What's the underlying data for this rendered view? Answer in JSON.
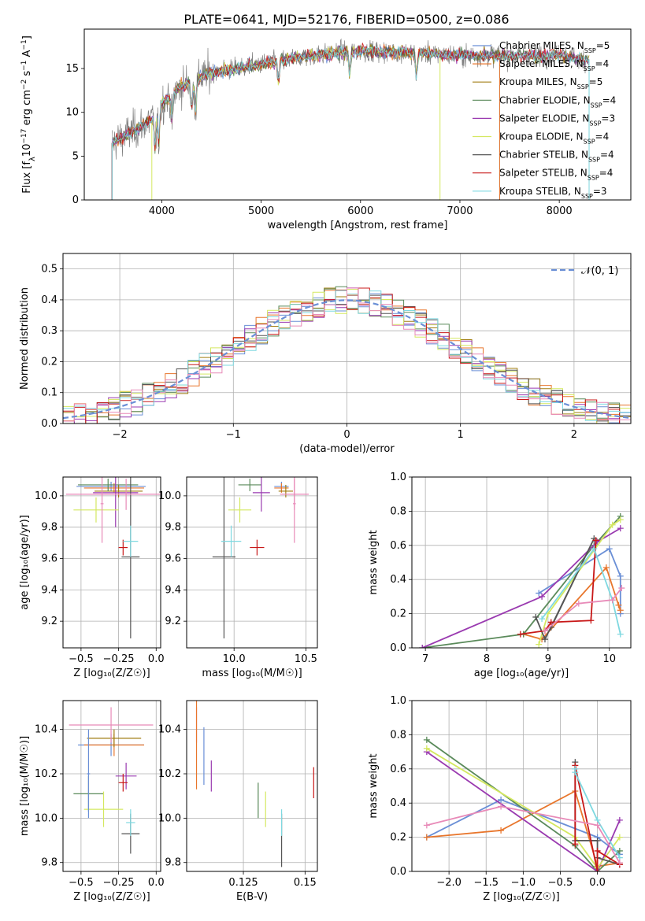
{
  "figure_title": "PLATE=0641, MJD=52176, FIBERID=0500, z=0.086",
  "colors": {
    "Chabrier MILES": "#6a8fd6",
    "Salpeter MILES": "#e8762c",
    "Kroupa MILES": "#a07d12",
    "Chabrier ELODIE": "#5a8a5a",
    "Salpeter ELODIE": "#9a3ab0",
    "Kroupa ELODIE": "#d4e860",
    "Chabrier STELIB": "#555555",
    "Salpeter STELIB": "#c81818",
    "Kroupa STELIB": "#7ed8e0",
    "pink": "#e88ab8",
    "gaussian": "#6a8fd6",
    "grid": "#b0b0b0"
  },
  "chart_data": [
    {
      "id": "spectrum",
      "type": "line",
      "xlabel": "wavelength [Angstrom, rest frame]",
      "ylabel": "Flux [f_λ10^-17 erg cm^-2 s^-1 A^-1]",
      "xlim": [
        3220,
        8720
      ],
      "ylim": [
        0,
        19.5
      ],
      "xticks": [
        4000,
        5000,
        6000,
        7000,
        8000
      ],
      "yticks": [
        0,
        5,
        10,
        15
      ],
      "legend_position": "right",
      "legend": [
        {
          "label": "Chabrier MILES, N",
          "sub": "SSP",
          "suffix": "=5",
          "color_key": "Chabrier MILES"
        },
        {
          "label": "Salpeter MILES, N",
          "sub": "SSP",
          "suffix": "=4",
          "color_key": "Salpeter MILES"
        },
        {
          "label": "Kroupa MILES, N",
          "sub": "SSP",
          "suffix": "=5",
          "color_key": "Kroupa MILES"
        },
        {
          "label": "Chabrier ELODIE, N",
          "sub": "SSP",
          "suffix": "=4",
          "color_key": "Chabrier ELODIE"
        },
        {
          "label": "Salpeter ELODIE, N",
          "sub": "SSP",
          "suffix": "=3",
          "color_key": "Salpeter ELODIE"
        },
        {
          "label": "Kroupa ELODIE, N",
          "sub": "SSP",
          "suffix": "=4",
          "color_key": "Kroupa ELODIE"
        },
        {
          "label": "Chabrier STELIB, N",
          "sub": "SSP",
          "suffix": "=4",
          "color_key": "Chabrier STELIB"
        },
        {
          "label": "Salpeter STELIB, N",
          "sub": "SSP",
          "suffix": "=4",
          "color_key": "Salpeter STELIB"
        },
        {
          "label": "Kroupa STELIB, N",
          "sub": "SSP",
          "suffix": "=3",
          "color_key": "Kroupa STELIB"
        }
      ],
      "continuum": [
        [
          3500,
          6.5
        ],
        [
          3700,
          7.8
        ],
        [
          3900,
          9.2
        ],
        [
          4000,
          11
        ],
        [
          4200,
          13
        ],
        [
          4500,
          14.5
        ],
        [
          5000,
          15.5
        ],
        [
          5500,
          16.5
        ],
        [
          6000,
          17
        ],
        [
          6500,
          16.8
        ],
        [
          7000,
          16.5
        ],
        [
          7500,
          16.5
        ],
        [
          8000,
          16.5
        ],
        [
          8300,
          16
        ]
      ],
      "series_ranges": [
        [
          3500,
          7400
        ],
        [
          3500,
          7400
        ],
        [
          3500,
          8300
        ],
        [
          3500,
          8300
        ],
        [
          3500,
          8300
        ],
        [
          3900,
          6800
        ],
        [
          3500,
          8300
        ],
        [
          3500,
          8300
        ],
        [
          3500,
          8300
        ]
      ],
      "dips": [
        [
          3934,
          -4
        ],
        [
          3969,
          -4
        ],
        [
          4102,
          -3
        ],
        [
          4300,
          -3
        ],
        [
          4340,
          -3.5
        ],
        [
          5175,
          -2.5
        ],
        [
          5890,
          -2.5
        ],
        [
          6563,
          -2.5
        ]
      ]
    },
    {
      "id": "residual-hist",
      "type": "bar",
      "xlabel": "(data-model)/error",
      "ylabel": "Normed distribution",
      "xlim": [
        -2.5,
        2.5
      ],
      "ylim": [
        0,
        0.55
      ],
      "xticks": [
        -2,
        -1,
        0,
        1,
        2
      ],
      "yticks": [
        0.0,
        0.1,
        0.2,
        0.3,
        0.4,
        0.5
      ],
      "bins": 50,
      "legend_label": "𝒩(0, 1)",
      "legend_position": "top-right",
      "gaussian": {
        "mean": 0,
        "sigma": 1
      }
    },
    {
      "id": "age-vs-Z",
      "type": "scatter",
      "xlabel": "Z [log₁₀(Z/Z☉)]",
      "ylabel": "age  [log₁₀(age/yr)]",
      "xlim": [
        -0.62,
        0.03
      ],
      "ylim": [
        9.03,
        10.12
      ],
      "xticks": [
        -0.5,
        -0.25,
        0.0
      ],
      "yticks": [
        9.2,
        9.4,
        9.6,
        9.8,
        10.0
      ],
      "points": [
        {
          "c": "Chabrier MILES",
          "x": -0.3,
          "xerr": 0.23,
          "y": 10.06,
          "yerr": 0.03
        },
        {
          "c": "Salpeter MILES",
          "x": -0.28,
          "xerr": 0.2,
          "y": 10.05,
          "yerr": 0.03
        },
        {
          "c": "Kroupa MILES",
          "x": -0.25,
          "xerr": 0.16,
          "y": 10.03,
          "yerr": 0.04
        },
        {
          "c": "Chabrier ELODIE",
          "x": -0.32,
          "xerr": 0.2,
          "y": 10.07,
          "yerr": 0.04
        },
        {
          "c": "Salpeter ELODIE",
          "x": -0.27,
          "xerr": 0.15,
          "y": 10.02,
          "yerr": 0.22
        },
        {
          "c": "Kroupa ELODIE",
          "x": -0.4,
          "xerr": 0.15,
          "y": 9.91,
          "yerr": 0.08
        },
        {
          "c": "Chabrier STELIB",
          "x": -0.17,
          "xerr": 0.06,
          "y": 9.61,
          "yerr": 0.52
        },
        {
          "c": "Salpeter STELIB",
          "x": -0.22,
          "xerr": 0.03,
          "y": 9.67,
          "yerr": 0.05
        },
        {
          "c": "Kroupa STELIB",
          "x": -0.17,
          "xerr": 0.05,
          "y": 9.71,
          "yerr": 0.1
        },
        {
          "c": "pink",
          "x": -0.2,
          "xerr": 0.4,
          "y": 10.01,
          "yerr": 0.1
        },
        {
          "c": "pink",
          "x": -0.36,
          "xerr": 0.01,
          "y": 9.95,
          "yerr": 0.25
        }
      ]
    },
    {
      "id": "age-vs-mass",
      "type": "scatter",
      "xlabel": "mass [log₁₀(M/M☉)]",
      "ylabel": "",
      "xlim": [
        9.67,
        10.58
      ],
      "ylim": [
        9.03,
        10.12
      ],
      "xticks": [
        10.0,
        10.5
      ],
      "yticks": [
        9.2,
        9.4,
        9.6,
        9.8,
        10.0
      ],
      "points": [
        {
          "c": "Chabrier MILES",
          "x": 10.33,
          "xerr": 0.05,
          "y": 10.06,
          "yerr": 0.03
        },
        {
          "c": "Salpeter MILES",
          "x": 10.33,
          "xerr": 0.05,
          "y": 10.05,
          "yerr": 0.03
        },
        {
          "c": "Kroupa MILES",
          "x": 10.36,
          "xerr": 0.05,
          "y": 10.03,
          "yerr": 0.04
        },
        {
          "c": "Chabrier ELODIE",
          "x": 10.11,
          "xerr": 0.08,
          "y": 10.07,
          "yerr": 0.04
        },
        {
          "c": "Salpeter ELODIE",
          "x": 10.19,
          "xerr": 0.06,
          "y": 10.02,
          "yerr": 0.12
        },
        {
          "c": "Kroupa ELODIE",
          "x": 10.04,
          "xerr": 0.08,
          "y": 9.91,
          "yerr": 0.08
        },
        {
          "c": "Chabrier STELIB",
          "x": 9.93,
          "xerr": 0.08,
          "y": 9.61,
          "yerr": 0.52
        },
        {
          "c": "Salpeter STELIB",
          "x": 10.16,
          "xerr": 0.05,
          "y": 9.67,
          "yerr": 0.05
        },
        {
          "c": "Kroupa STELIB",
          "x": 9.98,
          "xerr": 0.07,
          "y": 9.71,
          "yerr": 0.1
        },
        {
          "c": "pink",
          "x": 10.42,
          "xerr": 0.1,
          "y": 10.01,
          "yerr": 0.1
        },
        {
          "c": "pink",
          "x": 10.42,
          "xerr": 0.01,
          "y": 9.95,
          "yerr": 0.25
        }
      ]
    },
    {
      "id": "weight-vs-age",
      "type": "line",
      "xlabel": "age  [log₁₀(age/yr)]",
      "ylabel": "mass weight",
      "xlim": [
        6.78,
        10.35
      ],
      "ylim": [
        0,
        1
      ],
      "xticks": [
        7,
        8,
        9,
        10
      ],
      "yticks": [
        0.0,
        0.2,
        0.4,
        0.6,
        0.8,
        1.0
      ],
      "series": [
        {
          "c": "Chabrier MILES",
          "x": [
            8.85,
            10.0,
            10.18,
            10.18
          ],
          "y": [
            0.32,
            0.58,
            0.42,
            0.2
          ]
        },
        {
          "c": "Salpeter MILES",
          "x": [
            8.6,
            8.9,
            9.95,
            10.15,
            10.18
          ],
          "y": [
            0.08,
            0.05,
            0.47,
            0.25,
            0.22
          ]
        },
        {
          "c": "Chabrier ELODIE",
          "x": [
            6.95,
            8.6,
            9.75,
            10.18
          ],
          "y": [
            0.0,
            0.08,
            0.6,
            0.77
          ]
        },
        {
          "c": "Salpeter ELODIE",
          "x": [
            6.95,
            8.9,
            9.8,
            10.18
          ],
          "y": [
            0.0,
            0.3,
            0.62,
            0.7
          ]
        },
        {
          "c": "Kroupa ELODIE",
          "x": [
            8.85,
            9.0,
            10.05,
            10.18
          ],
          "y": [
            0.02,
            0.2,
            0.72,
            0.75
          ]
        },
        {
          "c": "Chabrier STELIB",
          "x": [
            8.8,
            8.95,
            9.75,
            9.05
          ],
          "y": [
            0.18,
            0.05,
            0.64,
            0.12
          ]
        },
        {
          "c": "Salpeter STELIB",
          "x": [
            8.55,
            8.95,
            9.05,
            9.7,
            9.78
          ],
          "y": [
            0.08,
            0.1,
            0.15,
            0.16,
            0.63
          ]
        },
        {
          "c": "Kroupa STELIB",
          "x": [
            8.9,
            9.75,
            10.05,
            10.18
          ],
          "y": [
            0.17,
            0.58,
            0.28,
            0.08
          ]
        },
        {
          "c": "pink",
          "x": [
            8.95,
            9.5,
            10.05,
            10.2
          ],
          "y": [
            0.1,
            0.26,
            0.28,
            0.35
          ]
        }
      ]
    },
    {
      "id": "mass-vs-Z",
      "type": "scatter",
      "xlabel": "Z [log₁₀(Z/Z☉)]",
      "ylabel": "mass [log₁₀(M/M☉)]",
      "xlim": [
        -0.62,
        0.03
      ],
      "ylim": [
        9.76,
        10.53
      ],
      "xticks": [
        -0.5,
        -0.25,
        0.0
      ],
      "yticks": [
        9.8,
        10.0,
        10.2,
        10.4
      ],
      "points": [
        {
          "c": "Chabrier MILES",
          "x": -0.3,
          "xerr": 0.22,
          "y": 10.33,
          "yerr": 0.05
        },
        {
          "c": "Salpeter MILES",
          "x": -0.28,
          "xerr": 0.2,
          "y": 10.33,
          "yerr": 0.05
        },
        {
          "c": "Kroupa MILES",
          "x": -0.28,
          "xerr": 0.18,
          "y": 10.36,
          "yerr": 0.04
        },
        {
          "c": "Chabrier ELODIE",
          "x": -0.45,
          "xerr": 0.1,
          "y": 10.11,
          "yerr": 0.08
        },
        {
          "c": "Salpeter ELODIE",
          "x": -0.2,
          "xerr": 0.07,
          "y": 10.19,
          "yerr": 0.06
        },
        {
          "c": "Kroupa ELODIE",
          "x": -0.35,
          "xerr": 0.13,
          "y": 10.04,
          "yerr": 0.08
        },
        {
          "c": "Chabrier STELIB",
          "x": -0.17,
          "xerr": 0.06,
          "y": 9.93,
          "yerr": 0.09
        },
        {
          "c": "Salpeter STELIB",
          "x": -0.22,
          "xerr": 0.03,
          "y": 10.16,
          "yerr": 0.04
        },
        {
          "c": "Kroupa STELIB",
          "x": -0.17,
          "xerr": 0.03,
          "y": 9.98,
          "yerr": 0.06
        },
        {
          "c": "pink",
          "x": -0.3,
          "xerr": 0.28,
          "y": 10.42,
          "yerr": 0.08
        },
        {
          "c": "Chabrier MILES",
          "x": -0.45,
          "xerr": 0.01,
          "y": 10.2,
          "yerr": 0.2
        }
      ]
    },
    {
      "id": "mass-vs-ebv",
      "type": "scatter",
      "xlabel": "E(B-V)",
      "ylabel": "",
      "xlim": [
        0.102,
        0.155
      ],
      "ylim": [
        9.76,
        10.53
      ],
      "xticks": [
        0.125,
        0.15
      ],
      "yticks": [
        9.8,
        10.0,
        10.2,
        10.4
      ],
      "points": [
        {
          "c": "pink",
          "x": 0.106,
          "y": 10.42,
          "yerr": 0.08
        },
        {
          "c": "Salpeter MILES",
          "x": 0.106,
          "y": 10.33,
          "yerr": 0.2
        },
        {
          "c": "Chabrier MILES",
          "x": 0.109,
          "y": 10.28,
          "yerr": 0.13
        },
        {
          "c": "Salpeter ELODIE",
          "x": 0.112,
          "y": 10.19,
          "yerr": 0.07
        },
        {
          "c": "Chabrier ELODIE",
          "x": 0.131,
          "y": 10.08,
          "yerr": 0.08
        },
        {
          "c": "Kroupa ELODIE",
          "x": 0.134,
          "y": 10.04,
          "yerr": 0.08
        },
        {
          "c": "Chabrier STELIB",
          "x": 0.1405,
          "y": 9.9,
          "yerr": 0.12
        },
        {
          "c": "Kroupa STELIB",
          "x": 0.1405,
          "y": 9.98,
          "yerr": 0.06
        },
        {
          "c": "Salpeter STELIB",
          "x": 0.1535,
          "y": 10.16,
          "yerr": 0.07
        }
      ]
    },
    {
      "id": "weight-vs-Z",
      "type": "line",
      "xlabel": "Z [log₁₀(Z/Z☉)]",
      "ylabel": "mass weight",
      "xlim": [
        -2.5,
        0.45
      ],
      "ylim": [
        0,
        1
      ],
      "xticks": [
        -2.0,
        -1.5,
        -1.0,
        -0.5,
        0.0
      ],
      "yticks": [
        0.0,
        0.2,
        0.4,
        0.6,
        0.8,
        1.0
      ],
      "series": [
        {
          "c": "Chabrier MILES",
          "x": [
            -2.3,
            -1.3,
            0.0,
            0.3
          ],
          "y": [
            0.2,
            0.42,
            0.2,
            0.1
          ]
        },
        {
          "c": "Salpeter MILES",
          "x": [
            -2.3,
            -1.3,
            -0.3,
            0.0,
            0.3
          ],
          "y": [
            0.2,
            0.24,
            0.47,
            0.03,
            0.05
          ]
        },
        {
          "c": "Chabrier ELODIE",
          "x": [
            -2.3,
            -0.3,
            0.0,
            0.3
          ],
          "y": [
            0.77,
            0.15,
            0.0,
            0.12
          ]
        },
        {
          "c": "Salpeter ELODIE",
          "x": [
            -2.3,
            0.0,
            0.3
          ],
          "y": [
            0.7,
            0.0,
            0.3
          ]
        },
        {
          "c": "Kroupa ELODIE",
          "x": [
            -2.3,
            -0.3,
            0.0,
            0.3
          ],
          "y": [
            0.72,
            0.2,
            0.02,
            0.2
          ]
        },
        {
          "c": "Chabrier STELIB",
          "x": [
            -0.3,
            -0.3,
            0.0,
            0.0,
            0.3
          ],
          "y": [
            0.64,
            0.18,
            0.18,
            0.08,
            0.04
          ]
        },
        {
          "c": "Salpeter STELIB",
          "x": [
            -0.3,
            -0.3,
            0.0,
            0.0,
            0.3
          ],
          "y": [
            0.16,
            0.62,
            0.0,
            0.12,
            0.04
          ]
        },
        {
          "c": "Kroupa STELIB",
          "x": [
            -0.3,
            -0.3,
            0.0,
            0.3
          ],
          "y": [
            0.6,
            0.58,
            0.3,
            0.08
          ]
        },
        {
          "c": "pink",
          "x": [
            -2.3,
            -1.3,
            0.0,
            0.3
          ],
          "y": [
            0.27,
            0.38,
            0.27,
            0.05
          ]
        }
      ]
    }
  ]
}
